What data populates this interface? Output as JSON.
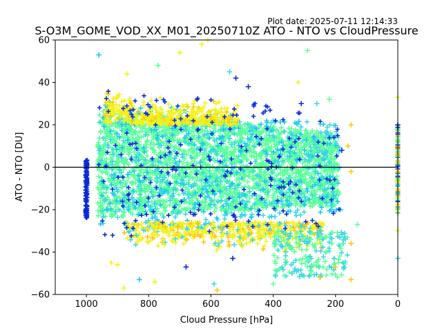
{
  "chart_data": {
    "type": "scatter",
    "title": "S-O3M_GOME_VOD_XX_M01_20250710Z ATO - NTO vs CloudPressure",
    "plot_date": "Plot date: 2025-07-11 12:14:33",
    "xlabel": "Cloud Pressure [hPa]",
    "ylabel": "ATO - NTO [DU]",
    "xlim": [
      1100,
      0
    ],
    "ylim": [
      -60,
      60
    ],
    "x_inverted": true,
    "xticks": [
      1000,
      800,
      600,
      400,
      200,
      0
    ],
    "yticks": [
      -60,
      -40,
      -20,
      0,
      20,
      40,
      60
    ],
    "xtick_labels": [
      "1000",
      "800",
      "600",
      "400",
      "200",
      "0"
    ],
    "ytick_labels": [
      "−60",
      "−40",
      "−20",
      "0",
      "20",
      "40",
      "60"
    ],
    "reference_line": {
      "y": 0,
      "color": "#000000"
    },
    "marker": "+",
    "grid": false,
    "colors": {
      "core": "#5cff9c",
      "mid": "#3cd6e6",
      "cyan": "#19c9f0",
      "blue": "#0a2bd8",
      "yellow": "#f2f21a",
      "orange": "#ffc40a"
    },
    "clusters": [
      {
        "name": "core",
        "color": "#5cff9c",
        "x_range": [
          180,
          1000
        ],
        "y_center": -3,
        "y_spread": 14
      },
      {
        "name": "upper_yellow",
        "color": "#f2f21a",
        "x_range": [
          500,
          950
        ],
        "y_center": 25,
        "y_spread": 8
      },
      {
        "name": "lower_yellow",
        "color": "#f2f21a",
        "x_range": [
          250,
          850
        ],
        "y_center": -32,
        "y_spread": 8
      },
      {
        "name": "left_edge_blue",
        "color": "#0a2bd8",
        "x_range": [
          980,
          1000
        ],
        "y_center": -5,
        "y_spread": 10
      },
      {
        "name": "right_edge",
        "color": "#ffc40a",
        "x_range": [
          0,
          5
        ],
        "y_center": 0,
        "y_spread": 12
      }
    ],
    "points": [
      {
        "x": 960,
        "y": 53,
        "c": "#19c9f0"
      },
      {
        "x": 610,
        "y": 60,
        "c": "#f2f21a"
      },
      {
        "x": 700,
        "y": 54,
        "c": "#f2f21a"
      },
      {
        "x": 630,
        "y": 58,
        "c": "#f2f21a"
      },
      {
        "x": 290,
        "y": 55,
        "c": "#5cff9c"
      },
      {
        "x": 540,
        "y": 45,
        "c": "#3cd6e6"
      },
      {
        "x": 520,
        "y": 42,
        "c": "#0a2bd8"
      },
      {
        "x": 480,
        "y": 38,
        "c": "#0a2bd8"
      },
      {
        "x": 870,
        "y": 44,
        "c": "#f2f21a"
      },
      {
        "x": 770,
        "y": 48,
        "c": "#5cff9c"
      },
      {
        "x": 310,
        "y": 30,
        "c": "#0a2bd8"
      },
      {
        "x": 260,
        "y": 30,
        "c": "#3cd6e6"
      },
      {
        "x": 220,
        "y": 32,
        "c": "#5cff9c"
      },
      {
        "x": 150,
        "y": 20,
        "c": "#ffc40a"
      },
      {
        "x": 160,
        "y": 10,
        "c": "#ffc40a"
      },
      {
        "x": 180,
        "y": 8,
        "c": "#0a2bd8"
      },
      {
        "x": 150,
        "y": -2,
        "c": "#ffc40a"
      },
      {
        "x": 130,
        "y": -27,
        "c": "#5cff9c"
      },
      {
        "x": 150,
        "y": -36,
        "c": "#ffc40a"
      },
      {
        "x": 150,
        "y": -53,
        "c": "#ffc40a"
      },
      {
        "x": 200,
        "y": -47,
        "c": "#ffc40a"
      },
      {
        "x": 250,
        "y": -52,
        "c": "#ffc40a"
      },
      {
        "x": 330,
        "y": -48,
        "c": "#3cd6e6"
      },
      {
        "x": 400,
        "y": -55,
        "c": "#5cff9c"
      },
      {
        "x": 580,
        "y": -58,
        "c": "#ffc40a"
      },
      {
        "x": 590,
        "y": -55,
        "c": "#3cd6e6"
      },
      {
        "x": 780,
        "y": -54,
        "c": "#f2f21a"
      },
      {
        "x": 830,
        "y": -53,
        "c": "#19c9f0"
      },
      {
        "x": 880,
        "y": -57,
        "c": "#f2f21a"
      },
      {
        "x": 900,
        "y": -46,
        "c": "#f2f21a"
      },
      {
        "x": 920,
        "y": -45,
        "c": "#f2f21a"
      },
      {
        "x": 530,
        "y": -43,
        "c": "#0a2bd8"
      },
      {
        "x": 680,
        "y": -47,
        "c": "#0a2bd8"
      },
      {
        "x": 0,
        "y": 33,
        "c": "#f2f21a"
      },
      {
        "x": 0,
        "y": 20,
        "c": "#0a2bd8"
      },
      {
        "x": 0,
        "y": -43,
        "c": "#3cd6e6"
      },
      {
        "x": 0,
        "y": -30,
        "c": "#f2f21a"
      },
      {
        "x": 320,
        "y": 40,
        "c": "#f2f21a"
      },
      {
        "x": 1000,
        "y": 3,
        "c": "#0a2bd8"
      },
      {
        "x": 1000,
        "y": -18,
        "c": "#0a2bd8"
      }
    ]
  }
}
